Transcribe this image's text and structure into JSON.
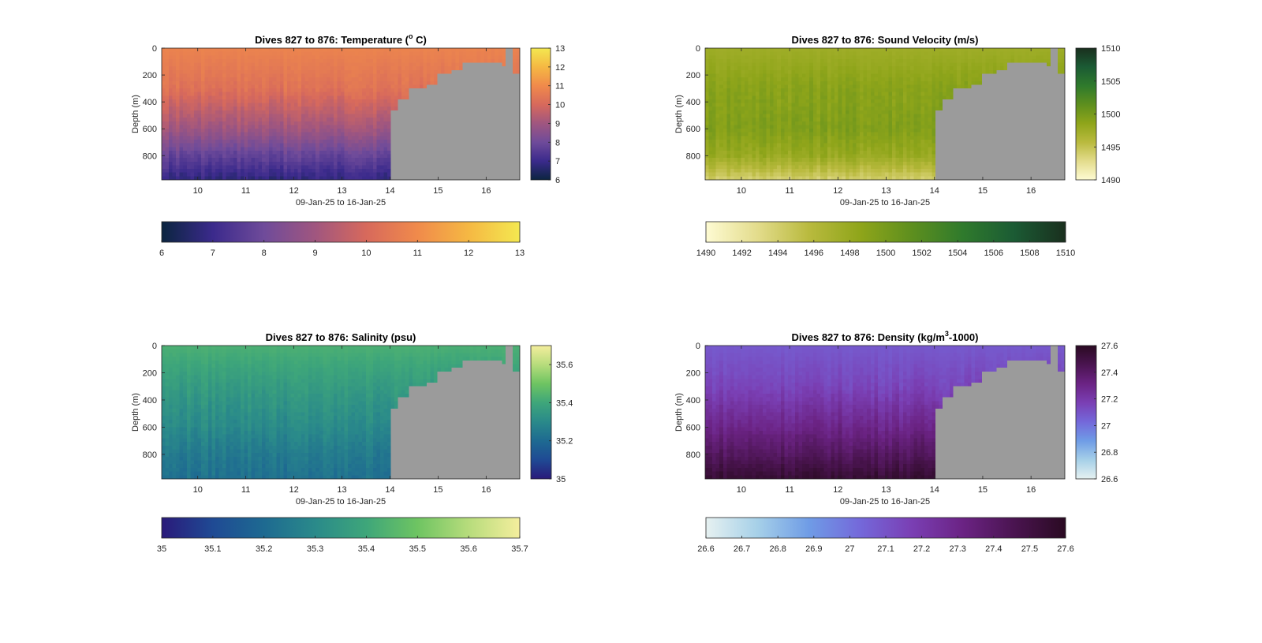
{
  "figure": {
    "x_range_label": "09-Jan-25 to 16-Jan-25",
    "y_label": "Depth (m)",
    "x_ticks": [
      "10",
      "11",
      "12",
      "13",
      "14",
      "15",
      "16"
    ],
    "y_ticks": [
      "0",
      "200",
      "400",
      "600",
      "800"
    ]
  },
  "chart_data": [
    {
      "id": "temperature",
      "type": "heatmap",
      "title": "Dives 827 to 876: Temperature (",
      "title_sup": "o",
      "title_end": " C)",
      "xlabel": "09-Jan-25 to 16-Jan-25",
      "ylabel": "Depth (m)",
      "xlim": [
        9.25,
        16.7
      ],
      "ylim": [
        0,
        980
      ],
      "y_reversed": true,
      "x_ticks": [
        10,
        11,
        12,
        13,
        14,
        15,
        16
      ],
      "y_ticks": [
        0,
        200,
        400,
        600,
        800
      ],
      "clim": [
        6,
        13
      ],
      "colormap": "thermal",
      "colors": [
        "#0b2540",
        "#3b2a8c",
        "#6f4b9a",
        "#a0567f",
        "#d7695c",
        "#f08a4b",
        "#f5b843",
        "#f4e850"
      ],
      "colorbar_ticks": [
        6,
        7,
        8,
        9,
        10,
        11,
        12,
        13
      ],
      "values_by_depth": {
        "depth": [
          0,
          300,
          600,
          800,
          980
        ],
        "value": [
          10.8,
          10.3,
          9.0,
          7.8,
          6.8
        ]
      },
      "ship_region": "grey (no data) after 14"
    },
    {
      "id": "sound_velocity",
      "type": "heatmap",
      "title": "Dives 827 to 876: Sound Velocity (m/s)",
      "xlabel": "09-Jan-25 to 16-Jan-25",
      "ylabel": "Depth (m)",
      "xlim": [
        9.25,
        16.7
      ],
      "ylim": [
        0,
        980
      ],
      "y_reversed": true,
      "x_ticks": [
        10,
        11,
        12,
        13,
        14,
        15,
        16
      ],
      "y_ticks": [
        0,
        200,
        400,
        600,
        800
      ],
      "clim": [
        1490,
        1510
      ],
      "colormap": "speed",
      "colors": [
        "#fefbd3",
        "#e3dc8c",
        "#b9ba3e",
        "#8fa51a",
        "#5e8f1e",
        "#2f7a2c",
        "#1b5b34",
        "#1a2f1e"
      ],
      "colorbar_ticks": [
        1490,
        1492,
        1494,
        1496,
        1498,
        1500,
        1502,
        1504,
        1506,
        1508,
        1510
      ],
      "side_colorbar_ticks": [
        1490,
        1495,
        1500,
        1505,
        1510
      ],
      "values_by_depth": {
        "depth": [
          0,
          300,
          600,
          800,
          980
        ],
        "value": [
          1497.5,
          1499,
          1499.5,
          1498,
          1494
        ]
      }
    },
    {
      "id": "salinity",
      "type": "heatmap",
      "title": "Dives 827 to 876: Salinity (psu)",
      "xlabel": "09-Jan-25 to 16-Jan-25",
      "ylabel": "Depth (m)",
      "xlim": [
        9.25,
        16.7
      ],
      "ylim": [
        0,
        980
      ],
      "y_reversed": true,
      "x_ticks": [
        10,
        11,
        12,
        13,
        14,
        15,
        16
      ],
      "y_ticks": [
        0,
        200,
        400,
        600,
        800
      ],
      "clim": [
        35,
        35.7
      ],
      "colormap": "haline",
      "colors": [
        "#2a1a7a",
        "#1f4a94",
        "#1e6a91",
        "#2a8a8a",
        "#3ea67a",
        "#6ec462",
        "#b7dc7c",
        "#f4ee9d"
      ],
      "colorbar_ticks": [
        35,
        35.1,
        35.2,
        35.3,
        35.4,
        35.5,
        35.6,
        35.7
      ],
      "side_colorbar_ticks": [
        35,
        35.2,
        35.4,
        35.6
      ],
      "values_by_depth": {
        "depth": [
          0,
          300,
          600,
          800,
          980
        ],
        "value": [
          35.43,
          35.36,
          35.3,
          35.25,
          35.22
        ]
      }
    },
    {
      "id": "density",
      "type": "heatmap",
      "title": "Dives 827 to 876: Density (kg/m",
      "title_sup": "3",
      "title_end": "-1000)",
      "xlabel": "09-Jan-25 to 16-Jan-25",
      "ylabel": "Depth (m)",
      "xlim": [
        9.25,
        16.7
      ],
      "ylim": [
        0,
        980
      ],
      "y_reversed": true,
      "x_ticks": [
        10,
        11,
        12,
        13,
        14,
        15,
        16
      ],
      "y_ticks": [
        0,
        200,
        400,
        600,
        800
      ],
      "clim": [
        26.6,
        27.6
      ],
      "colormap": "dense",
      "colors": [
        "#e6f1f1",
        "#a6d0e8",
        "#6f9ce6",
        "#7468da",
        "#7a3fb4",
        "#6b2384",
        "#4a1450",
        "#2a0a22"
      ],
      "colorbar_ticks": [
        26.6,
        26.7,
        26.8,
        26.9,
        27,
        27.1,
        27.2,
        27.3,
        27.4,
        27.5,
        27.6
      ],
      "side_colorbar_ticks": [
        26.6,
        26.8,
        27,
        27.2,
        27.4,
        27.6
      ],
      "values_by_depth": {
        "depth": [
          0,
          300,
          600,
          800,
          980
        ],
        "value": [
          27.08,
          27.15,
          27.3,
          27.42,
          27.55
        ]
      }
    }
  ]
}
